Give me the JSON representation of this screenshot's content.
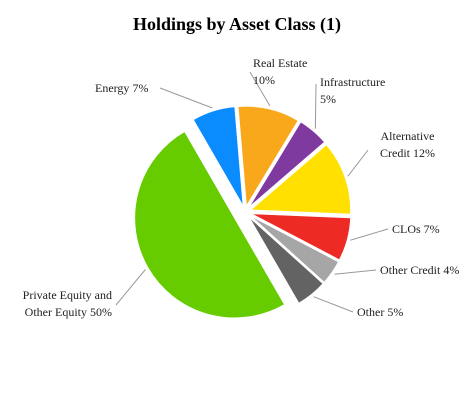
{
  "chart_data": {
    "type": "pie",
    "title": "Holdings by Asset Class (1)",
    "categories": [
      "Energy",
      "Real Estate",
      "Infrastructure",
      "Alternative Credit",
      "CLOs",
      "Other Credit",
      "Other",
      "Private Equity and Other Equity"
    ],
    "values": [
      7,
      10,
      5,
      12,
      7,
      4,
      5,
      50
    ],
    "value_labels": [
      "7%",
      "10%",
      "5%",
      "12%",
      "7%",
      "4%",
      "5%",
      "50%"
    ],
    "colors": [
      "#0a8cff",
      "#f9a81b",
      "#7f3aa0",
      "#ffe000",
      "#ee2a24",
      "#a6a6a6",
      "#636363",
      "#66cc00"
    ]
  }
}
